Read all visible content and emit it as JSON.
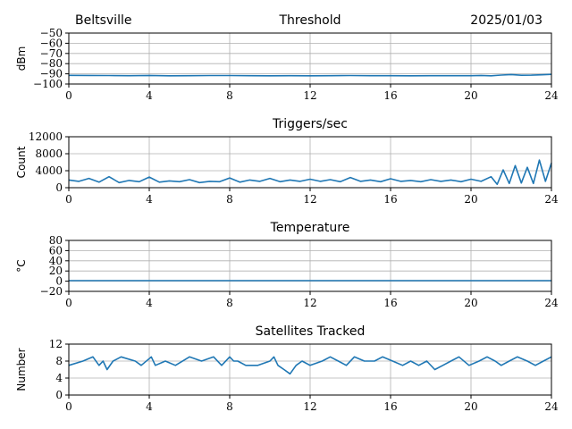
{
  "header": {
    "station": "Beltsville",
    "date": "2025/01/03"
  },
  "chart_data": [
    {
      "type": "line",
      "title": "Threshold",
      "xlabel": "",
      "ylabel": "dBm",
      "xlim": [
        0,
        24
      ],
      "ylim": [
        -100,
        -50
      ],
      "xticks": [
        "0",
        "4",
        "8",
        "12",
        "16",
        "20",
        "24"
      ],
      "yticks": [
        "−100",
        "−90",
        "−80",
        "−70",
        "−60",
        "−50"
      ],
      "ytick_values": [
        -100,
        -90,
        -80,
        -70,
        -60,
        -50
      ],
      "grid": true,
      "color": "#1f77b4",
      "series": [
        {
          "x": [
            0,
            1,
            2,
            3,
            4,
            5,
            6,
            7,
            8,
            9,
            10,
            11,
            12,
            13,
            14,
            15,
            16,
            17,
            18,
            19,
            20,
            20.5,
            21,
            21.5,
            22,
            22.5,
            23,
            23.5,
            24
          ],
          "values": [
            -91.5,
            -91.6,
            -91.7,
            -91.8,
            -91.6,
            -91.9,
            -91.8,
            -91.7,
            -91.7,
            -91.8,
            -91.9,
            -91.8,
            -91.9,
            -91.8,
            -91.7,
            -91.8,
            -91.8,
            -91.9,
            -91.8,
            -91.8,
            -91.8,
            -91.6,
            -91.9,
            -91.2,
            -90.7,
            -91.4,
            -91.3,
            -91.0,
            -90.5
          ]
        }
      ]
    },
    {
      "type": "line",
      "title": "Triggers/sec",
      "xlabel": "",
      "ylabel": "Count",
      "xlim": [
        0,
        24
      ],
      "ylim": [
        0,
        12000
      ],
      "xticks": [
        "0",
        "4",
        "8",
        "12",
        "16",
        "20",
        "24"
      ],
      "yticks": [
        "0",
        "4000",
        "8000",
        "12000"
      ],
      "ytick_values": [
        0,
        4000,
        8000,
        12000
      ],
      "grid": true,
      "color": "#1f77b4",
      "series": [
        {
          "x": [
            0,
            0.5,
            1,
            1.5,
            2,
            2.5,
            3,
            3.5,
            4,
            4.5,
            5,
            5.5,
            6,
            6.5,
            7,
            7.5,
            8,
            8.5,
            9,
            9.5,
            10,
            10.5,
            11,
            11.5,
            12,
            12.5,
            13,
            13.5,
            14,
            14.5,
            15,
            15.5,
            16,
            16.5,
            17,
            17.5,
            18,
            18.5,
            19,
            19.5,
            20,
            20.5,
            21,
            21.3,
            21.6,
            21.9,
            22.2,
            22.5,
            22.8,
            23.1,
            23.4,
            23.7,
            24
          ],
          "values": [
            1800,
            1500,
            2200,
            1300,
            2600,
            1200,
            1700,
            1400,
            2500,
            1300,
            1600,
            1400,
            1900,
            1200,
            1500,
            1400,
            2300,
            1300,
            1800,
            1500,
            2200,
            1400,
            1800,
            1500,
            2000,
            1500,
            1900,
            1400,
            2400,
            1500,
            1800,
            1400,
            2100,
            1500,
            1700,
            1400,
            1900,
            1500,
            1800,
            1400,
            2000,
            1500,
            2600,
            800,
            4200,
            1000,
            5200,
            1100,
            4800,
            1000,
            6500,
            1500,
            5800
          ]
        }
      ]
    },
    {
      "type": "line",
      "title": "Temperature",
      "xlabel": "",
      "ylabel": "°C",
      "xlim": [
        0,
        24
      ],
      "ylim": [
        -20,
        80
      ],
      "xticks": [
        "0",
        "4",
        "8",
        "12",
        "16",
        "20",
        "24"
      ],
      "yticks": [
        "−20",
        "0",
        "20",
        "40",
        "60",
        "80"
      ],
      "ytick_values": [
        -20,
        0,
        20,
        40,
        60,
        80
      ],
      "grid": true,
      "color": "#1f77b4",
      "series": [
        {
          "x": [
            0,
            24
          ],
          "values": [
            1,
            1
          ]
        }
      ]
    },
    {
      "type": "line",
      "title": "Satellites Tracked",
      "xlabel": "",
      "ylabel": "Number",
      "xlim": [
        0,
        24
      ],
      "ylim": [
        0,
        12
      ],
      "xticks": [
        "0",
        "4",
        "8",
        "12",
        "16",
        "20",
        "24"
      ],
      "yticks": [
        "0",
        "4",
        "8",
        "12"
      ],
      "ytick_values": [
        0,
        4,
        8,
        12
      ],
      "grid": true,
      "color": "#1f77b4",
      "series": [
        {
          "x": [
            0,
            0.7,
            1.2,
            1.5,
            1.7,
            1.9,
            2.2,
            2.6,
            3.3,
            3.6,
            4.1,
            4.3,
            4.8,
            5.3,
            6,
            6.6,
            7.2,
            7.6,
            8,
            8.2,
            8.4,
            8.8,
            9.4,
            10,
            10.2,
            10.4,
            10.7,
            11,
            11.3,
            11.6,
            12,
            12.6,
            13,
            13.4,
            13.8,
            14.2,
            14.7,
            15.2,
            15.6,
            16.1,
            16.6,
            17,
            17.4,
            17.8,
            18.2,
            18.6,
            19,
            19.4,
            19.9,
            20.4,
            20.8,
            21.2,
            21.5,
            21.9,
            22.3,
            22.8,
            23.2,
            23.6,
            24
          ],
          "values": [
            7,
            8,
            9,
            7,
            8,
            6,
            8,
            9,
            8,
            7,
            9,
            7,
            8,
            7,
            9,
            8,
            9,
            7,
            9,
            8,
            8,
            7,
            7,
            8,
            9,
            7,
            6,
            5,
            7,
            8,
            7,
            8,
            9,
            8,
            7,
            9,
            8,
            8,
            9,
            8,
            7,
            8,
            7,
            8,
            6,
            7,
            8,
            9,
            7,
            8,
            9,
            8,
            7,
            8,
            9,
            8,
            7,
            8,
            9
          ]
        }
      ]
    }
  ]
}
